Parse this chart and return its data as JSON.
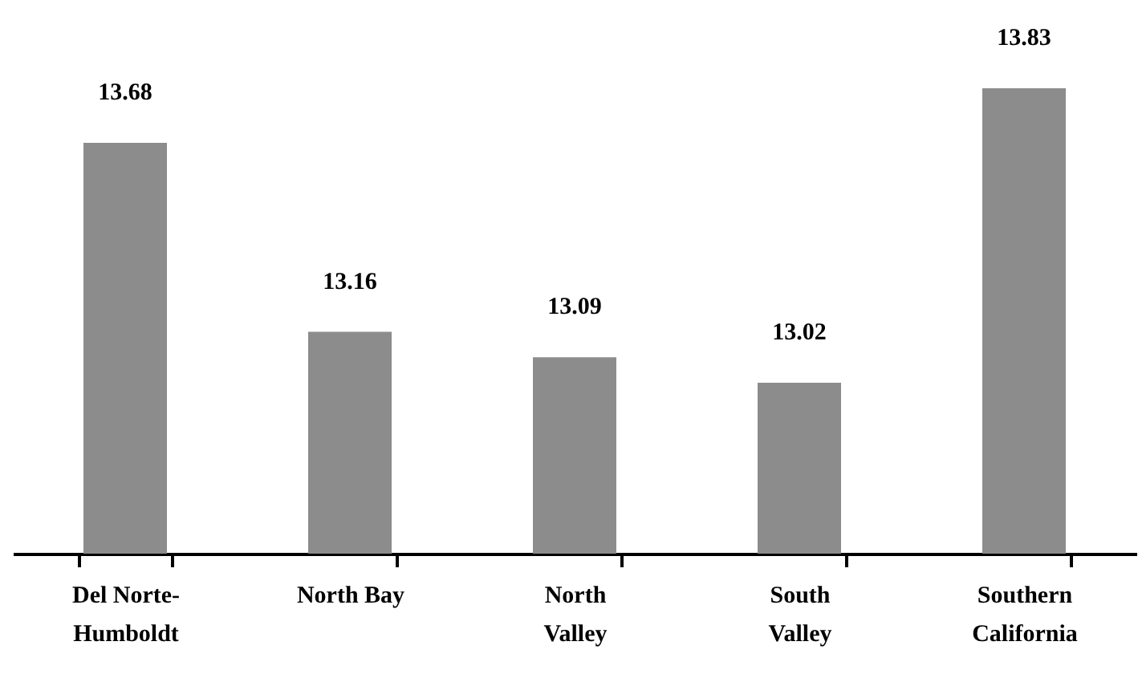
{
  "chart_data": {
    "type": "bar",
    "categories": [
      "Del Norte-Humboldt",
      "North Bay",
      "North Valley",
      "South Valley",
      "Southern California"
    ],
    "values": [
      13.68,
      13.16,
      13.09,
      13.02,
      13.83
    ],
    "color": "#8c8c8c",
    "ylim": [
      12.55,
      13.83
    ],
    "data_labels": true,
    "tick_labels": "x"
  }
}
